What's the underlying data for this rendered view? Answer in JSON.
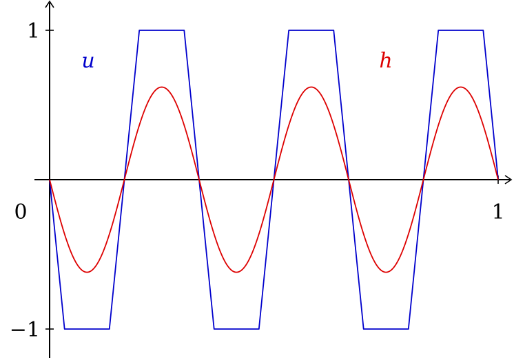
{
  "chart_data": {
    "type": "line",
    "xlim": [
      0,
      1
    ],
    "ylim": [
      -1,
      1
    ],
    "grid": false,
    "x_ticks": [
      {
        "value": 1,
        "label": "1"
      }
    ],
    "y_ticks": [
      {
        "value": 1,
        "label": "1"
      },
      {
        "value": -1,
        "label": "−1"
      }
    ],
    "origin_label": "0",
    "series": [
      {
        "name": "u",
        "color": "#0000cc",
        "x": [
          0,
          0.0333,
          0.1333,
          0.1667,
          0.2,
          0.3,
          0.3333,
          0.3667,
          0.4667,
          0.5,
          0.5333,
          0.6333,
          0.6667,
          0.7,
          0.8,
          0.8333,
          0.8667,
          0.9667,
          1
        ],
        "y": [
          0,
          -1,
          -1,
          0,
          1,
          1,
          0,
          -1,
          -1,
          0,
          1,
          1,
          0,
          -1,
          -1,
          0,
          1,
          1,
          0
        ]
      },
      {
        "name": "h",
        "color": "#dd0000",
        "amplitude": 0.62,
        "periods": 3,
        "sign": -1
      }
    ]
  }
}
